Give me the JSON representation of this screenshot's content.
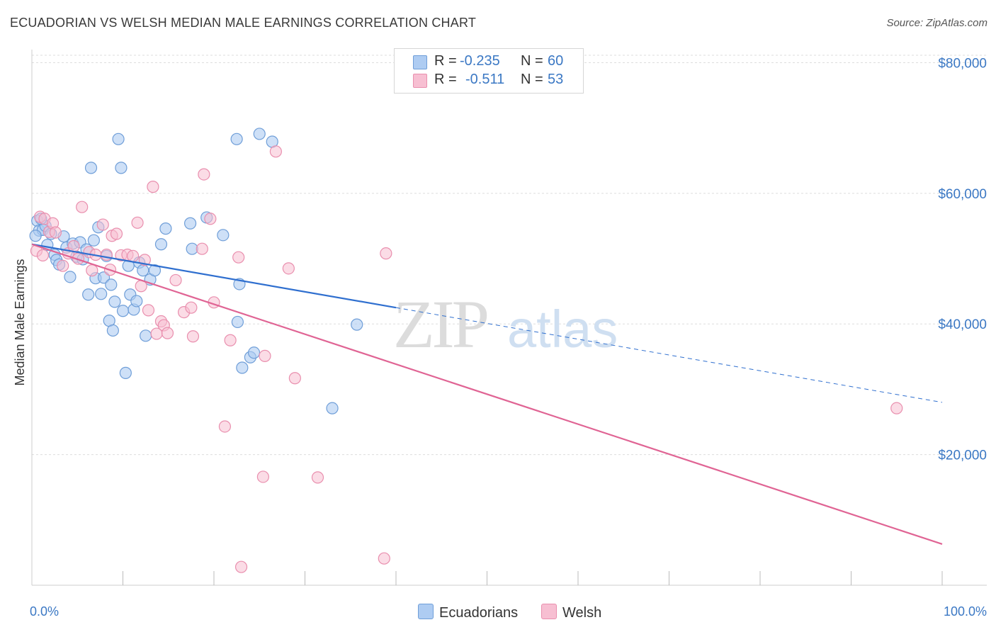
{
  "title": "ECUADORIAN VS WELSH MEDIAN MALE EARNINGS CORRELATION CHART",
  "source": "Source: ZipAtlas.com",
  "watermark": {
    "zip": "ZIP",
    "atlas": "atlas"
  },
  "legend": {
    "rows": [
      {
        "r_label": "R =",
        "r_value": "-0.235",
        "n_label": "N =",
        "n_value": "60"
      },
      {
        "r_label": "R =",
        "r_value": "-0.511",
        "n_label": "N =",
        "n_value": "53"
      }
    ]
  },
  "bottom_legend": {
    "series1": "Ecuadorians",
    "series2": "Welsh"
  },
  "colors": {
    "ecuadorian_fill": "#aeccf2",
    "ecuadorian_stroke": "#6f9ed8",
    "ecuadorian_line": "#2f6fcf",
    "welsh_fill": "#f7bfd2",
    "welsh_stroke": "#e98fae",
    "welsh_line": "#e06494",
    "tick_text": "#3b78c4",
    "grid": "#dddddd"
  },
  "chart_data": {
    "type": "scatter",
    "title": "ECUADORIAN VS WELSH MEDIAN MALE EARNINGS CORRELATION CHART",
    "xlabel": "",
    "ylabel": "Median Male Earnings",
    "xlim": [
      0,
      100
    ],
    "ylim": [
      0,
      82000
    ],
    "x_tick_labels": [
      "0.0%",
      "100.0%"
    ],
    "y_ticks": [
      20000,
      40000,
      60000,
      80000
    ],
    "y_tick_labels": [
      "$20,000",
      "$40,000",
      "$60,000",
      "$80,000"
    ],
    "series": [
      {
        "name": "Ecuadorians",
        "R": -0.235,
        "N": 60,
        "trend": {
          "x0": 0,
          "y0": 52200,
          "x1": 40,
          "y1": 42500,
          "dash_x1": 100,
          "dash_y1": 28000
        },
        "points": [
          [
            0.6,
            55800
          ],
          [
            0.8,
            54300
          ],
          [
            1.2,
            54400
          ],
          [
            1.5,
            55000
          ],
          [
            1.7,
            52100
          ],
          [
            2.1,
            53800
          ],
          [
            2.5,
            50600
          ],
          [
            2.7,
            49800
          ],
          [
            3.0,
            49100
          ],
          [
            3.5,
            53400
          ],
          [
            3.8,
            51700
          ],
          [
            4.2,
            47200
          ],
          [
            4.5,
            52300
          ],
          [
            4.9,
            50300
          ],
          [
            5.3,
            52500
          ],
          [
            5.6,
            49900
          ],
          [
            6.0,
            51400
          ],
          [
            6.2,
            44500
          ],
          [
            6.5,
            63900
          ],
          [
            6.8,
            52800
          ],
          [
            7.0,
            47000
          ],
          [
            7.3,
            54800
          ],
          [
            7.6,
            44600
          ],
          [
            7.9,
            47100
          ],
          [
            8.2,
            50400
          ],
          [
            8.5,
            40500
          ],
          [
            8.7,
            46000
          ],
          [
            8.9,
            39000
          ],
          [
            9.1,
            43400
          ],
          [
            9.5,
            68300
          ],
          [
            9.8,
            63900
          ],
          [
            10.0,
            42000
          ],
          [
            10.3,
            32500
          ],
          [
            10.6,
            48900
          ],
          [
            10.8,
            44500
          ],
          [
            11.2,
            42200
          ],
          [
            11.5,
            43500
          ],
          [
            11.8,
            49400
          ],
          [
            12.2,
            48200
          ],
          [
            12.5,
            38200
          ],
          [
            13.0,
            46800
          ],
          [
            13.5,
            48200
          ],
          [
            14.2,
            52200
          ],
          [
            14.7,
            54600
          ],
          [
            17.4,
            55400
          ],
          [
            17.6,
            51500
          ],
          [
            19.2,
            56300
          ],
          [
            21.0,
            53600
          ],
          [
            22.5,
            68300
          ],
          [
            22.8,
            46100
          ],
          [
            22.6,
            40300
          ],
          [
            23.1,
            33300
          ],
          [
            24.0,
            34900
          ],
          [
            24.4,
            35600
          ],
          [
            25.0,
            69100
          ],
          [
            26.4,
            67900
          ],
          [
            33.0,
            27100
          ],
          [
            35.7,
            39900
          ],
          [
            0.4,
            53500
          ],
          [
            1.0,
            56100
          ]
        ]
      },
      {
        "name": "Welsh",
        "R": -0.511,
        "N": 53,
        "trend": {
          "x0": 0,
          "y0": 52200,
          "x1": 100,
          "y1": 6300
        },
        "points": [
          [
            0.5,
            51200
          ],
          [
            0.9,
            56400
          ],
          [
            1.4,
            56100
          ],
          [
            1.9,
            54100
          ],
          [
            2.3,
            55400
          ],
          [
            2.6,
            54000
          ],
          [
            3.4,
            48900
          ],
          [
            4.0,
            50800
          ],
          [
            4.6,
            51900
          ],
          [
            5.1,
            50000
          ],
          [
            5.5,
            57900
          ],
          [
            6.3,
            51000
          ],
          [
            6.6,
            48200
          ],
          [
            7.0,
            50600
          ],
          [
            7.8,
            55200
          ],
          [
            8.2,
            50600
          ],
          [
            8.6,
            48300
          ],
          [
            8.8,
            53500
          ],
          [
            9.3,
            53800
          ],
          [
            9.8,
            50500
          ],
          [
            10.5,
            50600
          ],
          [
            11.1,
            50400
          ],
          [
            11.6,
            55500
          ],
          [
            12.0,
            45800
          ],
          [
            12.4,
            49800
          ],
          [
            12.8,
            42100
          ],
          [
            13.3,
            61000
          ],
          [
            13.7,
            38500
          ],
          [
            14.2,
            40400
          ],
          [
            14.5,
            39800
          ],
          [
            14.9,
            38600
          ],
          [
            15.8,
            46700
          ],
          [
            16.7,
            41800
          ],
          [
            17.5,
            42500
          ],
          [
            17.7,
            38100
          ],
          [
            18.7,
            51500
          ],
          [
            18.9,
            62900
          ],
          [
            19.6,
            56100
          ],
          [
            20.0,
            43300
          ],
          [
            21.2,
            24300
          ],
          [
            21.8,
            37500
          ],
          [
            22.7,
            50200
          ],
          [
            23.0,
            2800
          ],
          [
            25.4,
            16600
          ],
          [
            25.6,
            35100
          ],
          [
            26.8,
            66400
          ],
          [
            28.2,
            48500
          ],
          [
            28.9,
            31700
          ],
          [
            31.4,
            16500
          ],
          [
            38.7,
            4100
          ],
          [
            38.9,
            50800
          ],
          [
            95.0,
            27100
          ],
          [
            1.2,
            50500
          ]
        ]
      }
    ]
  }
}
